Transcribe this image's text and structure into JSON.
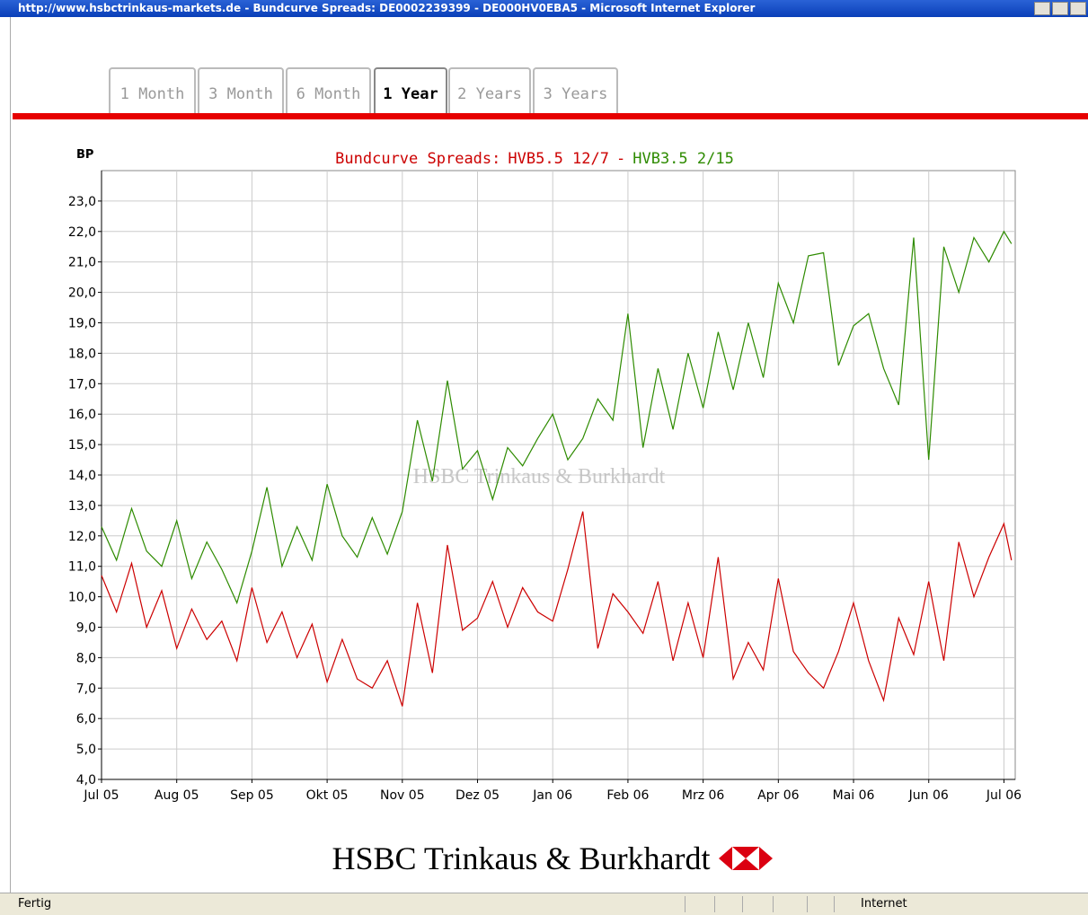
{
  "window_title": "http://www.hsbctrinkaus-markets.de - Bundcurve Spreads: DE0002239399 - DE000HV0EBA5 - Microsoft Internet Explorer",
  "tabs": [
    "1 Month",
    "3 Month",
    "6 Month",
    "1 Year",
    "2 Years",
    "3 Years"
  ],
  "active_tab": 3,
  "status": {
    "left": "Fertig",
    "zone": "Internet"
  },
  "logo": "HSBC Trinkaus & Burkhardt",
  "chart_data": {
    "type": "line",
    "title": "Bundcurve Spreads:",
    "title_separator": "-",
    "y_label": "BP",
    "watermark": "HSBC Trinkaus & Burkhardt",
    "xlim": [
      0,
      12.15
    ],
    "xticks": [
      {
        "value": 0,
        "label": "Jul 05"
      },
      {
        "value": 1,
        "label": "Aug 05"
      },
      {
        "value": 2,
        "label": "Sep 05"
      },
      {
        "value": 3,
        "label": "Okt 05"
      },
      {
        "value": 4,
        "label": "Nov 05"
      },
      {
        "value": 5,
        "label": "Dez 05"
      },
      {
        "value": 6,
        "label": "Jan 06"
      },
      {
        "value": 7,
        "label": "Feb 06"
      },
      {
        "value": 8,
        "label": "Mrz 06"
      },
      {
        "value": 9,
        "label": "Apr 06"
      },
      {
        "value": 10,
        "label": "Mai 06"
      },
      {
        "value": 11,
        "label": "Jun 06"
      },
      {
        "value": 12,
        "label": "Jul 06"
      }
    ],
    "ylim": [
      4,
      24
    ],
    "yticks": [
      {
        "value": 4,
        "label": "4,0"
      },
      {
        "value": 5,
        "label": "5,0"
      },
      {
        "value": 6,
        "label": "6,0"
      },
      {
        "value": 7,
        "label": "7,0"
      },
      {
        "value": 8,
        "label": "8,0"
      },
      {
        "value": 9,
        "label": "9,0"
      },
      {
        "value": 10,
        "label": "10,0"
      },
      {
        "value": 11,
        "label": "11,0"
      },
      {
        "value": 12,
        "label": "12,0"
      },
      {
        "value": 13,
        "label": "13,0"
      },
      {
        "value": 14,
        "label": "14,0"
      },
      {
        "value": 15,
        "label": "15,0"
      },
      {
        "value": 16,
        "label": "16,0"
      },
      {
        "value": 17,
        "label": "17,0"
      },
      {
        "value": 18,
        "label": "18,0"
      },
      {
        "value": 19,
        "label": "19,0"
      },
      {
        "value": 20,
        "label": "20,0"
      },
      {
        "value": 21,
        "label": "21,0"
      },
      {
        "value": 22,
        "label": "22,0"
      },
      {
        "value": 23,
        "label": "23,0"
      }
    ],
    "grid": true,
    "x": [
      0,
      0.2,
      0.4,
      0.6,
      0.8,
      1,
      1.2,
      1.4,
      1.6,
      1.8,
      2,
      2.2,
      2.4,
      2.6,
      2.8,
      3,
      3.2,
      3.4,
      3.6,
      3.8,
      4,
      4.2,
      4.4,
      4.6,
      4.8,
      5,
      5.2,
      5.4,
      5.6,
      5.8,
      6,
      6.2,
      6.4,
      6.6,
      6.8,
      7,
      7.2,
      7.4,
      7.6,
      7.8,
      8,
      8.2,
      8.4,
      8.6,
      8.8,
      9,
      9.2,
      9.4,
      9.6,
      9.8,
      10,
      10.2,
      10.4,
      10.6,
      10.8,
      11,
      11.2,
      11.4,
      11.6,
      11.8,
      12,
      12.1
    ],
    "series": [
      {
        "name": "HVB5.5 12/7",
        "color": "#cc0000",
        "values": [
          10.7,
          9.5,
          11.1,
          9.0,
          10.2,
          8.3,
          9.6,
          8.6,
          9.2,
          7.9,
          10.3,
          8.5,
          9.5,
          8.0,
          9.1,
          7.2,
          8.6,
          7.3,
          7.0,
          7.9,
          6.4,
          9.8,
          7.5,
          11.7,
          8.9,
          9.3,
          10.5,
          9.0,
          10.3,
          9.5,
          9.2,
          10.9,
          12.8,
          8.3,
          10.1,
          9.5,
          8.8,
          10.5,
          7.9,
          9.8,
          8.0,
          11.3,
          7.3,
          8.5,
          7.6,
          10.6,
          8.2,
          7.5,
          7.0,
          8.2,
          9.8,
          7.9,
          6.6,
          9.3,
          8.1,
          10.5,
          7.9,
          11.8,
          10.0,
          11.3,
          12.4,
          11.2
        ]
      },
      {
        "name": "HVB3.5 2/15",
        "color": "#2e8b00",
        "values": [
          12.3,
          11.2,
          12.9,
          11.5,
          11.0,
          12.5,
          10.6,
          11.8,
          10.9,
          9.8,
          11.5,
          13.6,
          11.0,
          12.3,
          11.2,
          13.7,
          12.0,
          11.3,
          12.6,
          11.4,
          12.8,
          15.8,
          13.8,
          17.1,
          14.2,
          14.8,
          13.2,
          14.9,
          14.3,
          15.2,
          16.0,
          14.5,
          15.2,
          16.5,
          15.8,
          19.3,
          14.9,
          17.5,
          15.5,
          18.0,
          16.2,
          18.7,
          16.8,
          19.0,
          17.2,
          20.3,
          19.0,
          21.2,
          21.3,
          17.6,
          18.9,
          19.3,
          17.5,
          16.3,
          21.8,
          14.5,
          21.5,
          20.0,
          21.8,
          21.0,
          22.0,
          21.6
        ]
      }
    ]
  }
}
